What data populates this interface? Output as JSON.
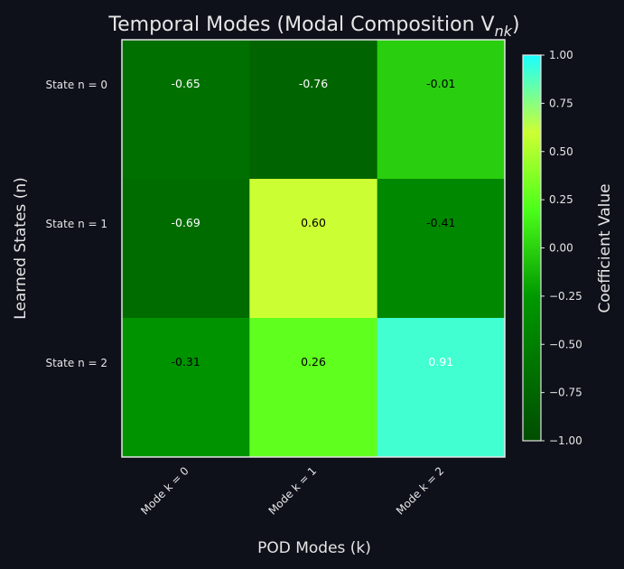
{
  "chart_data": {
    "type": "heatmap",
    "title": "Temporal Modes (Modal Composition V",
    "title_sub": "nk",
    "title_suffix": ")",
    "xlabel": "POD Modes (k)",
    "ylabel": "Learned States (n)",
    "x_categories": [
      "Mode k = 0",
      "Mode k = 1",
      "Mode k = 2"
    ],
    "y_categories": [
      "State n = 0",
      "State n = 1",
      "State n = 2"
    ],
    "values": [
      [
        -0.65,
        -0.76,
        -0.01
      ],
      [
        -0.69,
        0.6,
        -0.41
      ],
      [
        -0.31,
        0.26,
        0.91
      ]
    ],
    "value_labels": [
      [
        "-0.65",
        "-0.76",
        "-0.01"
      ],
      [
        "-0.69",
        "0.60",
        "-0.41"
      ],
      [
        "-0.31",
        "0.26",
        "0.91"
      ]
    ],
    "colorbar": {
      "label": "Coefficient Value",
      "range": [
        -1.0,
        1.0
      ],
      "ticks": [
        "1.00",
        "0.75",
        "0.50",
        "0.25",
        "0.00",
        "−0.25",
        "−0.50",
        "−0.75",
        "−1.00"
      ]
    },
    "colormap_stops": [
      "#004d00",
      "#009900",
      "#4cff1a",
      "#ccff33",
      "#1affff"
    ],
    "background": "#0e111a"
  }
}
